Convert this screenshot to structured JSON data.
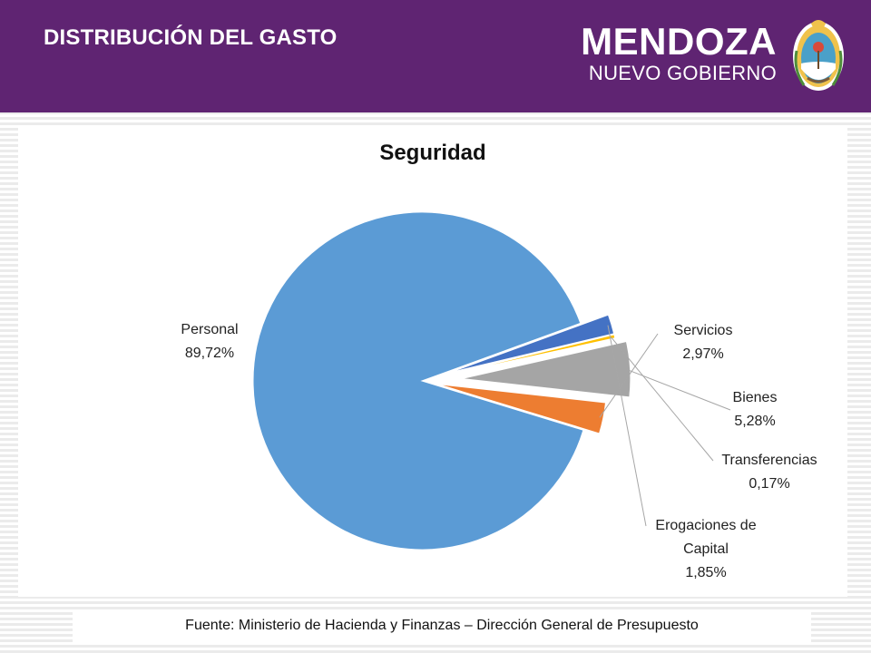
{
  "header": {
    "title": "DISTRIBUCIÓN DEL GASTO",
    "brand_main": "MENDOZA",
    "brand_sub": "NUEVO GOBIERNO",
    "background_color": "#5f2472",
    "seal_icon": "mendoza-coat-of-arms-icon"
  },
  "chart_data": {
    "type": "pie",
    "title": "Seguridad",
    "slices": [
      {
        "name": "Personal",
        "label": "Personal",
        "value_label": "89,72%",
        "value": 89.72,
        "color": "#5b9bd5"
      },
      {
        "name": "Servicios",
        "label": "Servicios",
        "value_label": "2,97%",
        "value": 2.97,
        "color": "#ed7d31"
      },
      {
        "name": "Bienes",
        "label": "Bienes",
        "value_label": "5,28%",
        "value": 5.28,
        "color": "#a5a5a5"
      },
      {
        "name": "Transferencias",
        "label": "Transferencias",
        "value_label": "0,17%",
        "value": 0.17,
        "color": "#ffc000"
      },
      {
        "name": "Erogaciones de Capital",
        "label_lines": [
          "Erogaciones de",
          "Capital"
        ],
        "value_label": "1,85%",
        "value": 1.85,
        "color": "#4472c4"
      }
    ]
  },
  "footer": {
    "source": "Fuente: Ministerio de Hacienda y Finanzas – Dirección General de Presupuesto"
  }
}
